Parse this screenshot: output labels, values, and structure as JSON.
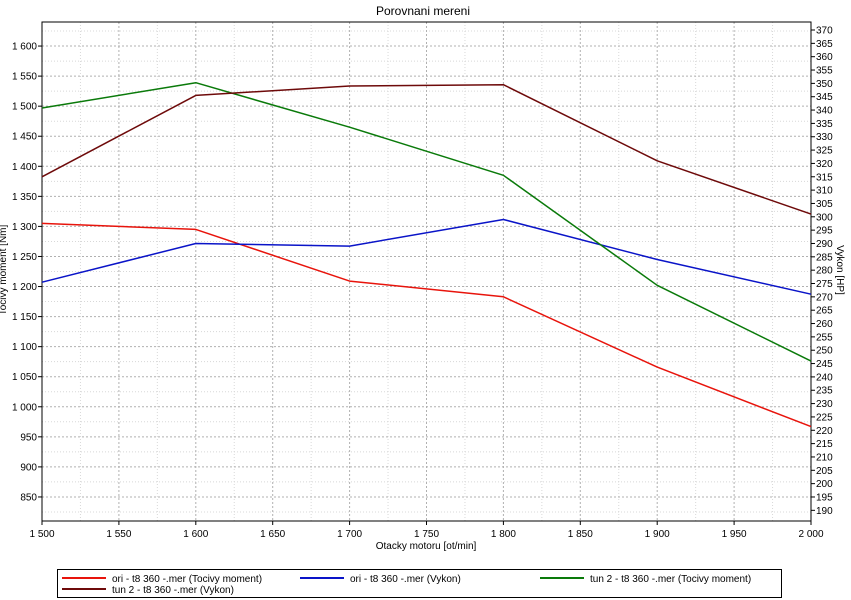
{
  "chart_data": {
    "type": "line",
    "title": "Porovnani mereni",
    "xlabel": "Otacky motoru [ot/min]",
    "ylabel_left": "Tocivy moment [Nm]",
    "ylabel_right": "Vykon [HP]",
    "xlim": [
      1500,
      2000
    ],
    "ylim_left": [
      810,
      1640
    ],
    "ylim_right": [
      186,
      373
    ],
    "x_ticks": [
      1500,
      1550,
      1600,
      1650,
      1700,
      1750,
      1800,
      1850,
      1900,
      1950,
      2000
    ],
    "x_tick_labels": [
      "1 500",
      "1 550",
      "1 600",
      "1 650",
      "1 700",
      "1 750",
      "1 800",
      "1 850",
      "1 900",
      "1 950",
      "2 000"
    ],
    "y_left_ticks": [
      850,
      900,
      950,
      1000,
      1050,
      1100,
      1150,
      1200,
      1250,
      1300,
      1350,
      1400,
      1450,
      1500,
      1550,
      1600
    ],
    "y_left_tick_labels": [
      "850",
      "900",
      "950",
      "1 000",
      "1 050",
      "1 100",
      "1 150",
      "1 200",
      "1 250",
      "1 300",
      "1 350",
      "1 400",
      "1 450",
      "1 500",
      "1 550",
      "1 600"
    ],
    "y_right_ticks": [
      190,
      195,
      200,
      205,
      210,
      215,
      220,
      225,
      230,
      235,
      240,
      245,
      250,
      255,
      260,
      265,
      270,
      275,
      280,
      285,
      290,
      295,
      300,
      305,
      310,
      315,
      320,
      325,
      330,
      335,
      340,
      345,
      350,
      355,
      360,
      365,
      370
    ],
    "grid": true,
    "legend_position": "bottom",
    "series": [
      {
        "name": "ori - t8 360 -.mer  (Tocivy moment)",
        "axis": "left",
        "color": "#e8140c",
        "x": [
          1500,
          1600,
          1700,
          1800,
          1900,
          2000
        ],
        "values": [
          1305,
          1295,
          1209,
          1183,
          1066,
          967
        ]
      },
      {
        "name": "ori - t8 360 -.mer  (Vykon)",
        "axis": "right",
        "color": "#0a14c8",
        "x": [
          1500,
          1600,
          1700,
          1800,
          1900,
          2000
        ],
        "values": [
          275.5,
          290,
          289,
          299,
          284,
          271
        ]
      },
      {
        "name": "tun 2 - t8 360 -.mer  (Tocivy moment)",
        "axis": "left",
        "color": "#0a7a0a",
        "x": [
          1500,
          1600,
          1700,
          1800,
          1900,
          2000
        ],
        "values": [
          1497,
          1539,
          1465,
          1385,
          1202,
          1076
        ]
      },
      {
        "name": "tun 2 - t8 360 -.mer  (Vykon)",
        "axis": "right",
        "color": "#6e0a0a",
        "x": [
          1500,
          1600,
          1700,
          1800,
          1900,
          2000
        ],
        "values": [
          315,
          345.5,
          349,
          349.5,
          321,
          301
        ]
      }
    ]
  }
}
